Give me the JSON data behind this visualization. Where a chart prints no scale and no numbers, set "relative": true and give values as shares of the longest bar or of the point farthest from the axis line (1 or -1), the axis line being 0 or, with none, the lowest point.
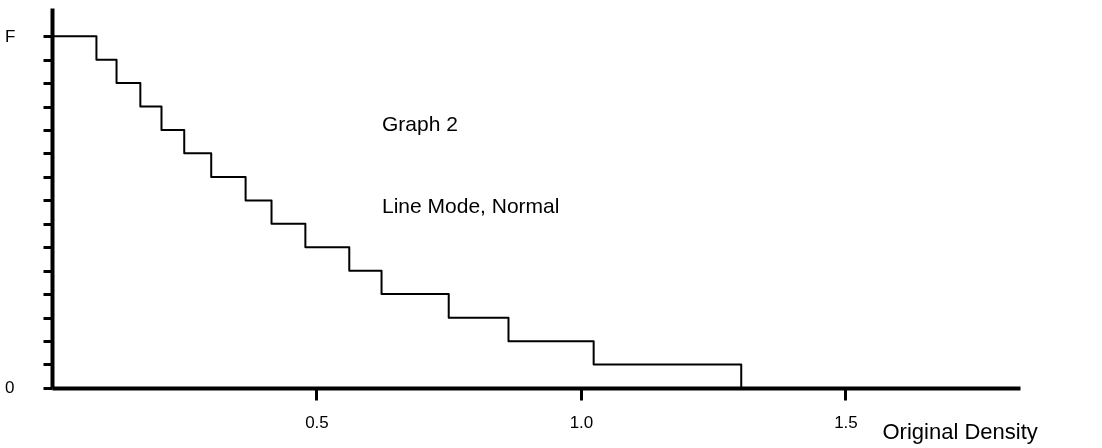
{
  "chart_data": {
    "type": "step",
    "xlabel": "Original Density",
    "relative": true,
    "annotations": [
      "Graph 2",
      "Line Mode, Normal",
      "F",
      "0"
    ],
    "x": [
      0,
      0.084,
      0.122,
      0.167,
      0.207,
      0.25,
      0.301,
      0.366,
      0.415,
      0.479,
      0.562,
      0.623,
      0.75,
      0.863,
      1.024,
      1.303
    ],
    "series": [
      {
        "color": "#000000",
        "values": [
          1,
          0.933,
          0.867,
          0.8,
          0.733,
          0.667,
          0.6,
          0.533,
          0.467,
          0.4,
          0.333,
          0.267,
          0.2,
          0.133,
          0.067,
          0
        ]
      }
    ],
    "xlim": [
      0,
      1.83
    ],
    "xticks": [
      0.5,
      {
        "value": 1.0,
        "label": "1.0"
      },
      1.5
    ],
    "grid": false,
    "marker": "none",
    "line_style": "solid"
  }
}
